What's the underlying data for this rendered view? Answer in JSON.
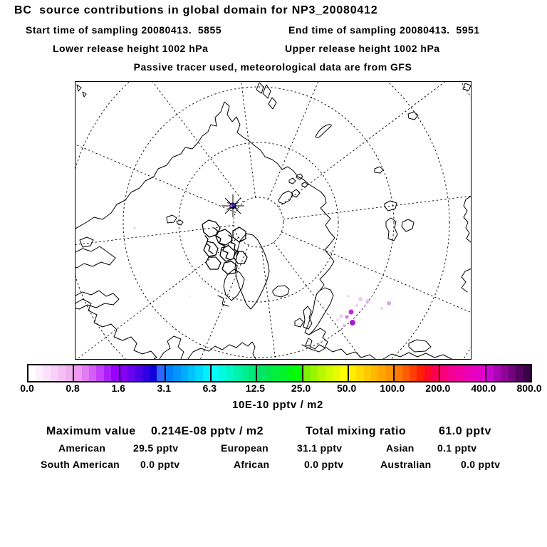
{
  "header": {
    "title": "BC  source contributions in global domain for NP3_20080412",
    "start_time": "Start time of sampling 20080413.  5855",
    "end_time": "End time of sampling 20080413.  5951",
    "lower_release": "Lower release height 1002 hPa",
    "upper_release": "Upper release height 1002 hPa",
    "tracer_note": "Passive tracer used, meteorological data are from GFS"
  },
  "map": {
    "projection": "north-polar-stereographic",
    "station_marker": "NP3 station asterisk marker",
    "marker_dot_color": "#2a2ac0",
    "marker_halo_color": "#bb55cc",
    "plume_color_bright": "#b426d2",
    "plume_color_pale": "#ecc4f4"
  },
  "colorbar": {
    "tick_labels": [
      "0.0",
      "0.8",
      "1.6",
      "3.1",
      "6.3",
      "12.5",
      "25.0",
      "50.0",
      "100.0",
      "200.0",
      "400.0",
      "800.0"
    ],
    "unit_label": "10E-10 pptv / m2",
    "segments": [
      [
        "#ffffff",
        "#fdeffd",
        "#fae0fa",
        "#f7d0f7",
        "#f4c0f4",
        "#f0b0f0"
      ],
      [
        "#ee99f2",
        "#e27df4",
        "#d55ff6",
        "#c23ef8",
        "#ae1efa",
        "#9900fc"
      ],
      [
        "#8800f4",
        "#6a00ee",
        "#4c00e8",
        "#2e00e2",
        "#1000dc",
        "#2e64ff"
      ],
      [
        "#0080ff",
        "#0096ff",
        "#00acff",
        "#00c2ff",
        "#00d8ff",
        "#00eeff"
      ],
      [
        "#00fffa",
        "#00fbe0",
        "#00f7c6",
        "#00f2ac",
        "#00ee92",
        "#00e978"
      ],
      [
        "#00e564",
        "#00ea50",
        "#00ef3c",
        "#00f428",
        "#00f914",
        "#00ff00"
      ],
      [
        "#7df200",
        "#9af500",
        "#b7f800",
        "#d0fa00",
        "#e8fc00",
        "#ffff00"
      ],
      [
        "#ffed00",
        "#ffdb00",
        "#ffc900",
        "#ffb700",
        "#ffa500",
        "#ff9300"
      ],
      [
        "#ff7a00",
        "#ff5c00",
        "#ff3e00",
        "#ff2000",
        "#fd0828",
        "#fb0050"
      ],
      [
        "#f8007c",
        "#f40092",
        "#f000a4",
        "#ec00b2",
        "#e700be",
        "#e200c8"
      ],
      [
        "#c808d0",
        "#ab06b4",
        "#8e0598",
        "#71047c",
        "#540360",
        "#3c0248"
      ]
    ]
  },
  "stats": {
    "max_label": "Maximum value",
    "max_value": "0.214E-08 pptv / m2",
    "ratio_label": "Total mixing ratio",
    "ratio_value": "61.0 pptv",
    "regions": [
      {
        "label": "American",
        "value": "29.5 pptv"
      },
      {
        "label": "European",
        "value": "31.1 pptv"
      },
      {
        "label": "Asian",
        "value": "0.1 pptv"
      },
      {
        "label": "South American",
        "value": "0.0 pptv"
      },
      {
        "label": "African",
        "value": "0.0 pptv"
      },
      {
        "label": "Australian",
        "value": "0.0 pptv"
      }
    ]
  },
  "chart_data": {
    "type": "heatmap",
    "title": "BC source contributions in global domain for NP3_20080412",
    "subtitle": [
      "Start time of sampling 20080413. 5855",
      "End time of sampling 20080413. 5951",
      "Lower release height 1002 hPa",
      "Upper release height 1002 hPa",
      "Passive tracer used, meteorological data are from GFS"
    ],
    "colorbar_levels": [
      0.0,
      0.8,
      1.6,
      3.1,
      6.3,
      12.5,
      25.0,
      50.0,
      100.0,
      200.0,
      400.0,
      800.0
    ],
    "colorbar_unit": "10E-10 pptv / m2",
    "maximum_value": "0.214E-08 pptv / m2",
    "total_mixing_ratio_pptv": 61.0,
    "source_contributions_pptv": {
      "American": 29.5,
      "European": 31.1,
      "Asian": 0.1,
      "South American": 0.0,
      "African": 0.0,
      "Australian": 0.0
    },
    "legend_position": "bottom",
    "notes": "Polar stereographic map, dashed graticule every 10 deg latitude / 30 deg longitude; low-value purple plume spots over Scandinavia; station marker near pole."
  }
}
